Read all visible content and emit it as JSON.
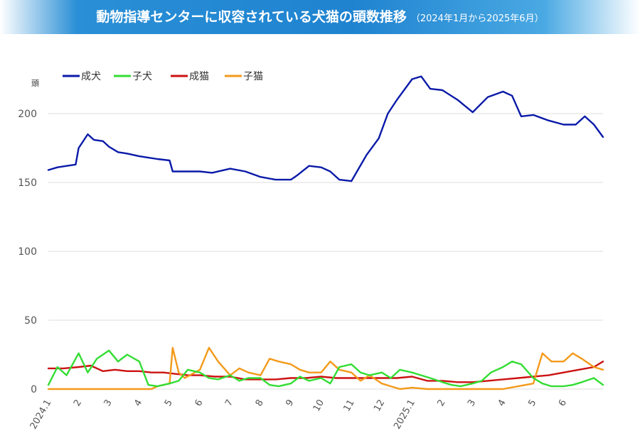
{
  "title": {
    "main": "動物指導センターに収容されている犬猫の頭数推移",
    "sub": "（2024年1月から2025年6月）"
  },
  "chart_data": {
    "type": "line",
    "title": "動物指導センターに収容されている犬猫の頭数推移",
    "subtitle": "（2024年1月から2025年6月）",
    "ylabel": "頭",
    "ylim": [
      0,
      200
    ],
    "yticks": [
      0,
      50,
      100,
      150,
      200
    ],
    "x_tick_labels": [
      "2024.1",
      "2",
      "3",
      "4",
      "5",
      "6",
      "7",
      "8",
      "9",
      "10",
      "11",
      "12",
      "2025.1",
      "2",
      "3",
      "4",
      "5",
      "6"
    ],
    "grid": "horizontal",
    "legend_position": "top-left",
    "months": [
      "2024.1",
      "2024.2",
      "2024.3",
      "2024.4",
      "2024.5",
      "2024.6",
      "2024.7",
      "2024.8",
      "2024.9",
      "2024.10",
      "2024.11",
      "2024.12",
      "2025.1",
      "2025.2",
      "2025.3",
      "2025.4",
      "2025.5",
      "2025.6"
    ],
    "series": [
      {
        "name": "成犬",
        "color": "#0a1aa8",
        "values": [
          [
            0,
            159
          ],
          [
            0.3,
            161
          ],
          [
            0.6,
            162
          ],
          [
            0.9,
            163
          ],
          [
            1.0,
            175
          ],
          [
            1.3,
            185
          ],
          [
            1.5,
            181
          ],
          [
            1.8,
            180
          ],
          [
            2.0,
            176
          ],
          [
            2.3,
            172
          ],
          [
            2.6,
            171
          ],
          [
            3.0,
            169
          ],
          [
            3.3,
            168
          ],
          [
            3.6,
            167
          ],
          [
            4.0,
            166
          ],
          [
            4.1,
            158
          ],
          [
            4.5,
            158
          ],
          [
            5.0,
            158
          ],
          [
            5.4,
            157
          ],
          [
            6.0,
            160
          ],
          [
            6.5,
            158
          ],
          [
            7.0,
            154
          ],
          [
            7.5,
            152
          ],
          [
            8.0,
            152
          ],
          [
            8.2,
            155
          ],
          [
            8.6,
            162
          ],
          [
            9.0,
            161
          ],
          [
            9.3,
            158
          ],
          [
            9.6,
            152
          ],
          [
            10.0,
            151
          ],
          [
            10.5,
            170
          ],
          [
            10.9,
            182
          ],
          [
            11.2,
            200
          ],
          [
            11.5,
            210
          ],
          [
            12.0,
            225
          ],
          [
            12.3,
            227
          ],
          [
            12.6,
            218
          ],
          [
            13.0,
            217
          ],
          [
            13.5,
            210
          ],
          [
            14.0,
            201
          ],
          [
            14.5,
            212
          ],
          [
            15.0,
            216
          ],
          [
            15.3,
            213
          ],
          [
            15.6,
            198
          ],
          [
            16.0,
            199
          ],
          [
            16.5,
            195
          ],
          [
            17.0,
            192
          ],
          [
            17.4,
            192
          ],
          [
            17.7,
            198
          ],
          [
            18.0,
            192
          ],
          [
            18.3,
            183
          ]
        ]
      },
      {
        "name": "子犬",
        "color": "#33dd33",
        "values": [
          [
            0,
            3
          ],
          [
            0.3,
            16
          ],
          [
            0.6,
            10
          ],
          [
            1.0,
            26
          ],
          [
            1.3,
            12
          ],
          [
            1.6,
            22
          ],
          [
            2.0,
            28
          ],
          [
            2.3,
            20
          ],
          [
            2.6,
            25
          ],
          [
            3.0,
            20
          ],
          [
            3.3,
            3
          ],
          [
            3.6,
            2
          ],
          [
            4.0,
            4
          ],
          [
            4.3,
            6
          ],
          [
            4.6,
            14
          ],
          [
            5.0,
            12
          ],
          [
            5.3,
            8
          ],
          [
            5.6,
            7
          ],
          [
            6.0,
            10
          ],
          [
            6.3,
            6
          ],
          [
            6.6,
            8
          ],
          [
            7.0,
            8
          ],
          [
            7.3,
            3
          ],
          [
            7.6,
            2
          ],
          [
            8.0,
            4
          ],
          [
            8.3,
            9
          ],
          [
            8.6,
            6
          ],
          [
            9.0,
            8
          ],
          [
            9.3,
            4
          ],
          [
            9.6,
            16
          ],
          [
            10.0,
            18
          ],
          [
            10.3,
            12
          ],
          [
            10.6,
            10
          ],
          [
            11.0,
            12
          ],
          [
            11.3,
            8
          ],
          [
            11.6,
            14
          ],
          [
            12.0,
            12
          ],
          [
            12.3,
            10
          ],
          [
            12.6,
            8
          ],
          [
            13.0,
            5
          ],
          [
            13.3,
            3
          ],
          [
            13.6,
            2
          ],
          [
            14.0,
            4
          ],
          [
            14.3,
            6
          ],
          [
            14.6,
            12
          ],
          [
            15.0,
            16
          ],
          [
            15.3,
            20
          ],
          [
            15.6,
            18
          ],
          [
            16.0,
            8
          ],
          [
            16.3,
            4
          ],
          [
            16.6,
            2
          ],
          [
            17.0,
            2
          ],
          [
            17.3,
            3
          ],
          [
            17.6,
            5
          ],
          [
            18.0,
            8
          ],
          [
            18.3,
            3
          ]
        ]
      },
      {
        "name": "成猫",
        "color": "#cc1111",
        "values": [
          [
            0,
            15
          ],
          [
            0.5,
            15
          ],
          [
            1.0,
            16
          ],
          [
            1.4,
            17
          ],
          [
            1.8,
            13
          ],
          [
            2.2,
            14
          ],
          [
            2.6,
            13
          ],
          [
            3.0,
            13
          ],
          [
            3.4,
            12
          ],
          [
            3.8,
            12
          ],
          [
            4.2,
            11
          ],
          [
            4.6,
            10
          ],
          [
            5.0,
            10
          ],
          [
            5.5,
            9
          ],
          [
            6.0,
            9
          ],
          [
            6.5,
            7
          ],
          [
            7.0,
            7
          ],
          [
            7.5,
            7
          ],
          [
            8.0,
            8
          ],
          [
            8.5,
            8
          ],
          [
            9.0,
            9
          ],
          [
            9.5,
            8
          ],
          [
            10.0,
            8
          ],
          [
            10.5,
            8
          ],
          [
            11.0,
            8
          ],
          [
            11.5,
            8
          ],
          [
            12.0,
            9
          ],
          [
            12.5,
            6
          ],
          [
            13.0,
            6
          ],
          [
            13.5,
            5
          ],
          [
            14.0,
            5
          ],
          [
            14.5,
            6
          ],
          [
            15.0,
            7
          ],
          [
            15.5,
            8
          ],
          [
            16.0,
            9
          ],
          [
            16.5,
            10
          ],
          [
            17.0,
            12
          ],
          [
            17.5,
            14
          ],
          [
            18.0,
            16
          ],
          [
            18.3,
            20
          ]
        ]
      },
      {
        "name": "子猫",
        "color": "#f39a1a",
        "values": [
          [
            0,
            0
          ],
          [
            1.0,
            0
          ],
          [
            2.0,
            0
          ],
          [
            3.0,
            0
          ],
          [
            3.4,
            0
          ],
          [
            3.6,
            2
          ],
          [
            4.0,
            4
          ],
          [
            4.1,
            30
          ],
          [
            4.3,
            12
          ],
          [
            4.5,
            8
          ],
          [
            5.0,
            14
          ],
          [
            5.3,
            30
          ],
          [
            5.6,
            20
          ],
          [
            6.0,
            10
          ],
          [
            6.3,
            15
          ],
          [
            6.6,
            12
          ],
          [
            7.0,
            10
          ],
          [
            7.3,
            22
          ],
          [
            7.6,
            20
          ],
          [
            8.0,
            18
          ],
          [
            8.3,
            14
          ],
          [
            8.6,
            12
          ],
          [
            9.0,
            12
          ],
          [
            9.3,
            20
          ],
          [
            9.6,
            14
          ],
          [
            10.0,
            12
          ],
          [
            10.3,
            6
          ],
          [
            10.6,
            10
          ],
          [
            11.0,
            4
          ],
          [
            11.3,
            2
          ],
          [
            11.6,
            0
          ],
          [
            12.0,
            1
          ],
          [
            12.5,
            0
          ],
          [
            13.0,
            0
          ],
          [
            13.5,
            0
          ],
          [
            14.0,
            0
          ],
          [
            14.5,
            0
          ],
          [
            15.0,
            0
          ],
          [
            15.5,
            2
          ],
          [
            16.0,
            4
          ],
          [
            16.3,
            26
          ],
          [
            16.6,
            20
          ],
          [
            17.0,
            20
          ],
          [
            17.3,
            26
          ],
          [
            17.6,
            22
          ],
          [
            18.0,
            16
          ],
          [
            18.3,
            14
          ]
        ]
      }
    ]
  }
}
